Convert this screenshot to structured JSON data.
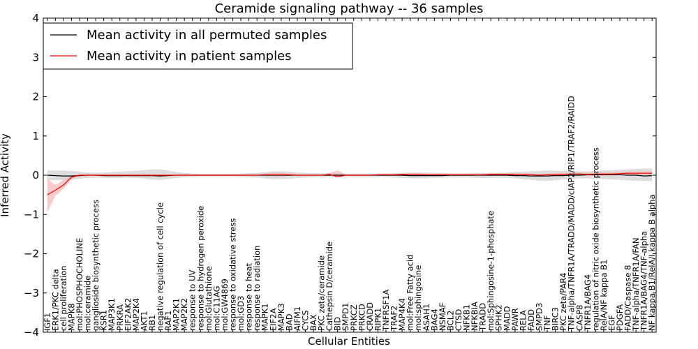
{
  "chart_data": {
    "type": "line",
    "title": "Ceramide signaling pathway -- 36 samples",
    "xlabel": "Cellular Entities",
    "ylabel": "Inferred Activity",
    "ylim": [
      -4,
      4
    ],
    "yticks": [
      -4,
      -3,
      -2,
      -1,
      0,
      1,
      2,
      3,
      4
    ],
    "ytick_labels": [
      "−4",
      "−3",
      "−2",
      "−1",
      "0",
      "1",
      "2",
      "3",
      "4"
    ],
    "grid": false,
    "legend_position": "top-left",
    "categories": [
      "IGF1",
      "ERK1/PKC delta",
      "cell proliferation",
      "MAPK8",
      "mol:PHOSPHOCHOLINE",
      "mol:ceramide",
      "ganglioside biosynthetic process",
      "KSR1",
      "MAP3K1",
      "PRKRA",
      "EIF2AK2",
      "MAP2K4",
      "AKT1",
      "RB1",
      "negative regulation of cell cycle",
      "RAF1",
      "MAP2K1",
      "MAP2K2",
      "response to UV",
      "response to hydrogen peroxide",
      "mol:Glutathione",
      "mol:C11AG",
      "mol:GW4869",
      "response to oxidative stress",
      "mol:GD3",
      "response to heat",
      "response to radiation",
      "MAPK1",
      "EIF2A",
      "MAPK3",
      "BAD",
      "AIFM1",
      "CYCS",
      "BAX",
      "PKC zeta/ceramide",
      "Cathepsin D/ceramide",
      "BID",
      "SMPD1",
      "PRKCZ",
      "PRKCD",
      "CRADD",
      "RIPK1",
      "TNFRSF1A",
      "TRAF2",
      "MAP4K4",
      "mol:Free Fatty acid",
      "mol:sphingosine",
      "ASAH1",
      "BAG4",
      "NSMAF",
      "BCL2",
      "CTSD",
      "NFKB1",
      "NFKBIA",
      "TRADD",
      "mol:Sphingosine-1-phosphate",
      "SPHK2",
      "MADD",
      "PAWR",
      "RELA",
      "FADD",
      "SMPD3",
      "TNF",
      "BIRC3",
      "PKC zeta/PAR4",
      "TNF-alpha/TNFR1A/TRADD/MADD/cIAP2/RIP1/TRAF2/RAIDD",
      "CASP8",
      "TNFR1A/BAG4",
      "regulation of nitric oxide biosynthetic process",
      "RelA/NF kappa B1",
      "EGF",
      "PDGFA",
      "FADD/Caspase 8",
      "TNF-alpha/TNFR1A/FAN",
      "TNFR1A/BAG4/TNF-alpha",
      "NF kappa B1/RelA/I kappa B alpha"
    ],
    "series": [
      {
        "name": "Mean activity in all permuted samples",
        "color": "#000000",
        "band_color": "#aaaaaa",
        "values": [
          0.0,
          -0.01,
          -0.02,
          -0.02,
          -0.01,
          0.0,
          0.0,
          -0.01,
          -0.01,
          -0.01,
          -0.01,
          -0.01,
          -0.01,
          -0.01,
          -0.02,
          -0.01,
          0.0,
          0.0,
          0.0,
          0.0,
          0.0,
          0.0,
          0.0,
          0.0,
          0.0,
          0.0,
          0.0,
          0.0,
          0.0,
          0.0,
          0.0,
          0.0,
          0.0,
          0.0,
          0.0,
          0.0,
          0.0,
          0.0,
          0.0,
          0.0,
          0.0,
          0.0,
          0.0,
          0.0,
          0.0,
          -0.01,
          -0.01,
          -0.01,
          -0.01,
          -0.01,
          0.0,
          0.0,
          0.0,
          0.0,
          0.0,
          0.0,
          0.0,
          0.0,
          -0.01,
          -0.01,
          -0.02,
          -0.02,
          -0.02,
          -0.01,
          -0.01,
          0.0,
          0.0,
          0.01,
          0.01,
          0.01,
          0.01,
          0.01,
          0.0,
          0.0,
          -0.02,
          -0.01
        ],
        "lower": [
          -0.13,
          -0.13,
          -0.12,
          -0.11,
          -0.09,
          -0.07,
          -0.06,
          -0.07,
          -0.07,
          -0.07,
          -0.06,
          -0.07,
          -0.09,
          -0.11,
          -0.12,
          -0.1,
          -0.07,
          -0.05,
          -0.04,
          -0.03,
          -0.03,
          -0.03,
          -0.03,
          -0.03,
          -0.04,
          -0.05,
          -0.06,
          -0.08,
          -0.1,
          -0.1,
          -0.09,
          -0.07,
          -0.06,
          -0.05,
          -0.05,
          -0.05,
          -0.04,
          -0.04,
          -0.04,
          -0.04,
          -0.04,
          -0.04,
          -0.05,
          -0.06,
          -0.07,
          -0.08,
          -0.08,
          -0.08,
          -0.07,
          -0.07,
          -0.06,
          -0.06,
          -0.06,
          -0.07,
          -0.07,
          -0.07,
          -0.07,
          -0.07,
          -0.08,
          -0.1,
          -0.12,
          -0.14,
          -0.14,
          -0.13,
          -0.11,
          -0.09,
          -0.08,
          -0.08,
          -0.09,
          -0.1,
          -0.11,
          -0.12,
          -0.13,
          -0.14,
          -0.15,
          -0.15
        ],
        "upper": [
          0.12,
          0.12,
          0.12,
          0.11,
          0.09,
          0.07,
          0.06,
          0.07,
          0.08,
          0.09,
          0.1,
          0.11,
          0.13,
          0.15,
          0.15,
          0.12,
          0.08,
          0.06,
          0.04,
          0.03,
          0.03,
          0.03,
          0.03,
          0.03,
          0.04,
          0.05,
          0.06,
          0.08,
          0.1,
          0.1,
          0.09,
          0.07,
          0.06,
          0.05,
          0.05,
          0.05,
          0.04,
          0.04,
          0.04,
          0.04,
          0.04,
          0.04,
          0.05,
          0.05,
          0.06,
          0.07,
          0.07,
          0.07,
          0.06,
          0.06,
          0.05,
          0.05,
          0.05,
          0.06,
          0.06,
          0.06,
          0.06,
          0.07,
          0.08,
          0.09,
          0.1,
          0.11,
          0.12,
          0.12,
          0.11,
          0.1,
          0.1,
          0.1,
          0.11,
          0.12,
          0.13,
          0.14,
          0.15,
          0.16,
          0.17,
          0.17
        ]
      },
      {
        "name": "Mean activity in patient samples",
        "color": "#ff0000",
        "band_color": "#f4a0a0",
        "values": [
          -0.5,
          -0.38,
          -0.25,
          -0.05,
          0.0,
          0.0,
          0.0,
          0.0,
          0.0,
          0.0,
          0.0,
          0.0,
          0.0,
          0.0,
          0.0,
          0.0,
          0.0,
          0.0,
          0.0,
          0.0,
          0.0,
          0.0,
          0.0,
          0.0,
          0.0,
          0.0,
          0.0,
          0.01,
          0.01,
          0.01,
          0.01,
          0.0,
          0.0,
          0.0,
          0.0,
          0.02,
          -0.04,
          0.0,
          0.0,
          0.0,
          0.0,
          0.01,
          0.01,
          0.01,
          0.02,
          0.02,
          0.02,
          0.01,
          0.01,
          0.01,
          0.01,
          0.01,
          0.01,
          0.01,
          0.01,
          0.02,
          0.02,
          0.02,
          0.02,
          0.02,
          0.01,
          0.0,
          0.01,
          0.02,
          0.02,
          0.03,
          0.03,
          0.02,
          0.03,
          0.03,
          0.03,
          0.04,
          0.05,
          0.05,
          0.05,
          0.05
        ],
        "lower": [
          -0.95,
          -0.52,
          -0.35,
          -0.1,
          -0.02,
          -0.01,
          -0.01,
          -0.01,
          -0.01,
          -0.01,
          -0.01,
          -0.01,
          -0.01,
          -0.01,
          -0.01,
          -0.01,
          -0.01,
          -0.01,
          -0.01,
          -0.01,
          -0.01,
          -0.01,
          -0.01,
          -0.01,
          -0.01,
          -0.01,
          -0.01,
          -0.02,
          -0.03,
          -0.03,
          -0.02,
          -0.01,
          -0.01,
          -0.01,
          -0.01,
          -0.01,
          -0.06,
          -0.01,
          -0.01,
          -0.01,
          -0.01,
          -0.01,
          -0.01,
          -0.01,
          -0.01,
          -0.01,
          -0.01,
          -0.01,
          -0.01,
          -0.01,
          -0.01,
          -0.01,
          -0.01,
          -0.01,
          -0.01,
          -0.01,
          -0.01,
          -0.01,
          -0.01,
          -0.01,
          -0.02,
          -0.03,
          -0.02,
          -0.01,
          -0.01,
          -0.01,
          -0.01,
          -0.01,
          -0.01,
          -0.01,
          -0.01,
          0.0,
          0.01,
          0.01,
          0.01,
          0.01
        ],
        "upper": [
          -0.1,
          -0.25,
          -0.12,
          0.0,
          0.02,
          0.01,
          0.01,
          0.01,
          0.01,
          0.01,
          0.01,
          0.01,
          0.01,
          0.01,
          0.01,
          0.01,
          0.01,
          0.01,
          0.01,
          0.01,
          0.01,
          0.01,
          0.01,
          0.01,
          0.01,
          0.01,
          0.01,
          0.04,
          0.06,
          0.06,
          0.04,
          0.01,
          0.01,
          0.01,
          0.01,
          0.06,
          0.12,
          0.02,
          0.01,
          0.01,
          0.01,
          0.03,
          0.03,
          0.03,
          0.04,
          0.05,
          0.05,
          0.03,
          0.03,
          0.03,
          0.03,
          0.03,
          0.03,
          0.03,
          0.03,
          0.05,
          0.05,
          0.05,
          0.05,
          0.05,
          0.04,
          0.03,
          0.04,
          0.05,
          0.06,
          0.07,
          0.07,
          0.06,
          0.07,
          0.07,
          0.07,
          0.08,
          0.09,
          0.09,
          0.09,
          0.09
        ]
      }
    ]
  }
}
